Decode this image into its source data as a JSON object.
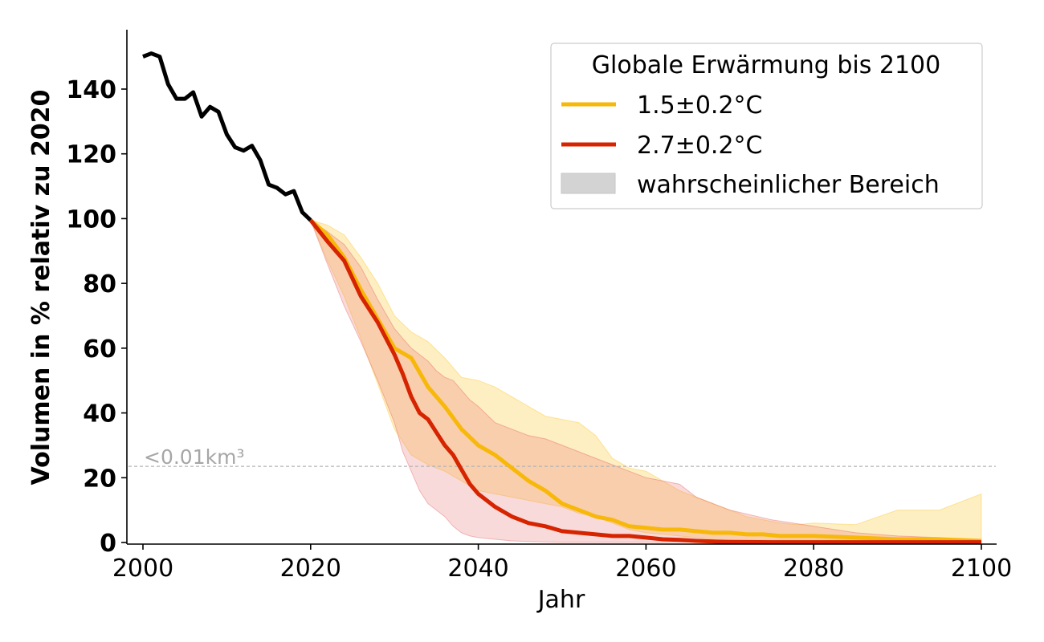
{
  "chart_data": {
    "type": "line",
    "xlabel": "Jahr",
    "ylabel": "Volumen in % relativ zu 2020",
    "xlim": [
      2000,
      2100
    ],
    "ylim": [
      0,
      150
    ],
    "xticks": [
      2000,
      2020,
      2040,
      2060,
      2080,
      2100
    ],
    "yticks": [
      0,
      20,
      40,
      60,
      80,
      100,
      120,
      140
    ],
    "grid": false,
    "legend": {
      "title": "Globale Erwärmung bis 2100",
      "placement": "top-right",
      "range_label": "wahrscheinlicher Bereich"
    },
    "threshold": {
      "y": 23.5,
      "label": "<0.01km³"
    },
    "historical": {
      "color": "#000000",
      "x": [
        2000,
        2001,
        2002,
        2003,
        2004,
        2005,
        2006,
        2007,
        2008,
        2009,
        2010,
        2011,
        2012,
        2013,
        2014,
        2015,
        2016,
        2017,
        2018,
        2019,
        2020
      ],
      "y": [
        150,
        151,
        150,
        141.5,
        137,
        137,
        139,
        131.5,
        134.5,
        133,
        126,
        122,
        121,
        122.5,
        118,
        110.5,
        109.5,
        107.5,
        108.5,
        102,
        99.5
      ]
    },
    "series": [
      {
        "name": "1.5±0.2°C",
        "color": "#f7b80a",
        "band_color": "#fcc934",
        "x": [
          2020,
          2022,
          2024,
          2026,
          2028,
          2030,
          2032,
          2034,
          2036,
          2038,
          2040,
          2042,
          2044,
          2046,
          2048,
          2050,
          2052,
          2054,
          2056,
          2058,
          2060,
          2062,
          2064,
          2066,
          2068,
          2070,
          2072,
          2074,
          2076,
          2078,
          2080,
          2085,
          2090,
          2095,
          2100
        ],
        "y": [
          99.5,
          95,
          88,
          78,
          69,
          60,
          57,
          48,
          42,
          35,
          30,
          27,
          23,
          19,
          16,
          12,
          10,
          8,
          7,
          5,
          4.5,
          4,
          4,
          3.5,
          3,
          3,
          2.5,
          2.5,
          2,
          2,
          2,
          1.5,
          1,
          1,
          0.5
        ],
        "lower": [
          99.5,
          87,
          76,
          63,
          49,
          35,
          27,
          24,
          22,
          19,
          16,
          15,
          14,
          13,
          12,
          11,
          9,
          8,
          6,
          4,
          3,
          2.5,
          2,
          1.5,
          1,
          0.5,
          0.5,
          0.3,
          0.3,
          0.2,
          0.2,
          0.1,
          0.1,
          0.1,
          0.1
        ],
        "upper": [
          99.5,
          98,
          95,
          88,
          80,
          70,
          65,
          62,
          57,
          51,
          50,
          48,
          45,
          42,
          39,
          38,
          37,
          33,
          26,
          23,
          22,
          19,
          16,
          14,
          12,
          10,
          8,
          7,
          6,
          5.5,
          6,
          5.5,
          10,
          10,
          15
        ]
      },
      {
        "name": "2.7±0.2°C",
        "color": "#d62400",
        "band_color": "#e86a6a",
        "x": [
          2020,
          2022,
          2024,
          2026,
          2028,
          2030,
          2031,
          2032,
          2033,
          2034,
          2035,
          2036,
          2037,
          2038,
          2039,
          2040,
          2042,
          2044,
          2046,
          2048,
          2050,
          2052,
          2054,
          2056,
          2058,
          2060,
          2062,
          2064,
          2066,
          2068,
          2070,
          2075,
          2080,
          2085,
          2090,
          2095,
          2100
        ],
        "y": [
          99.5,
          93,
          87,
          76,
          68,
          58,
          52,
          45,
          40,
          38,
          34,
          30,
          27,
          22.5,
          18,
          15,
          11,
          8,
          6,
          5,
          3.5,
          3,
          2.5,
          2,
          2,
          1.5,
          1,
          0.8,
          0.5,
          0.3,
          0.2,
          0.1,
          0.1,
          0.1,
          0.1,
          0.1,
          0.1
        ],
        "lower": [
          99.5,
          86,
          73,
          62,
          50,
          37,
          28,
          22,
          16,
          12,
          10,
          8,
          5,
          3,
          2,
          1.5,
          1,
          0.5,
          0.3,
          0.2,
          0.1,
          0.1,
          0.1,
          0.1,
          0.1,
          0.1,
          0.1,
          0.1,
          0.1,
          0.1,
          0.1,
          0.1,
          0.1,
          0.1,
          0.1,
          0.1,
          0.1
        ],
        "upper": [
          99.5,
          96,
          92,
          85,
          75,
          66,
          63,
          60,
          58,
          56,
          53,
          51,
          50,
          47,
          44,
          42,
          37,
          35,
          33,
          32,
          30,
          28,
          26,
          24,
          22,
          20,
          19,
          18,
          14,
          12,
          10,
          7,
          5,
          3,
          2,
          1.5,
          0.5
        ]
      }
    ]
  }
}
